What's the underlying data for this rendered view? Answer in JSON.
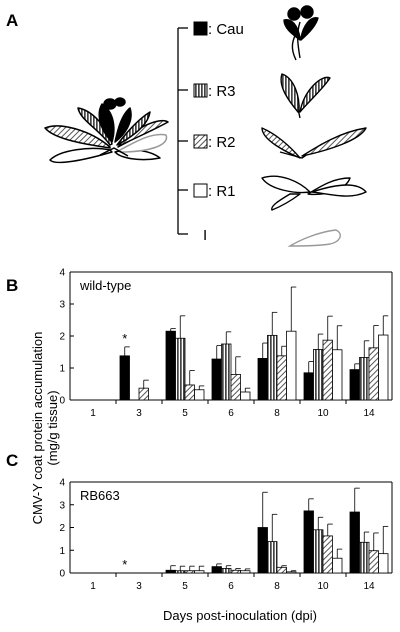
{
  "figure": {
    "panel_a_label": "A",
    "panel_b_label": "B",
    "panel_c_label": "C",
    "legend": [
      {
        "label": ": Cau",
        "fill": "black"
      },
      {
        "label": ": R3",
        "fill": "vstripe"
      },
      {
        "label": ": R2",
        "fill": "hatch"
      },
      {
        "label": ": R1",
        "fill": "white"
      },
      {
        "label": "I",
        "fill": "none"
      }
    ],
    "ylabel_line1": "CMV-Y coat protein accumulation",
    "ylabel_line2": "(mg/g tissue)",
    "xlabel": "Days post-inoculation (dpi)"
  },
  "chart_data": [
    {
      "type": "bar",
      "panel": "B",
      "title": "wild-type",
      "categories": [
        "1",
        "3",
        "5",
        "6",
        "8",
        "10",
        "14"
      ],
      "ylim": [
        0,
        4
      ],
      "yticks": [
        0,
        1,
        2,
        3,
        4
      ],
      "series": [
        {
          "key": "Cau",
          "fill": "black",
          "values": [
            0,
            1.38,
            2.15,
            1.28,
            1.3,
            0.85,
            0.95
          ],
          "errors": [
            0,
            0.28,
            0.08,
            0.42,
            0.48,
            0.35,
            0.18
          ]
        },
        {
          "key": "R3",
          "fill": "vstripe",
          "values": [
            0,
            0,
            1.93,
            1.75,
            2.02,
            1.58,
            1.33
          ],
          "errors": [
            0,
            0,
            0.7,
            0.38,
            0.72,
            0.48,
            0.52
          ]
        },
        {
          "key": "R2",
          "fill": "hatch",
          "values": [
            0,
            0.37,
            0.47,
            0.8,
            1.38,
            1.87,
            1.63
          ],
          "errors": [
            0,
            0.25,
            0.45,
            0.55,
            0.3,
            0.75,
            0.7
          ]
        },
        {
          "key": "R1",
          "fill": "white",
          "values": [
            0,
            0,
            0.32,
            0.25,
            2.15,
            1.57,
            2.03
          ],
          "errors": [
            0,
            0,
            0.12,
            0.12,
            1.38,
            0.75,
            0.6
          ]
        }
      ],
      "annotations": [
        {
          "text": "*",
          "category": "3"
        }
      ]
    },
    {
      "type": "bar",
      "panel": "C",
      "title": "RB663",
      "categories": [
        "1",
        "3",
        "5",
        "6",
        "8",
        "10",
        "14"
      ],
      "ylim": [
        0,
        4
      ],
      "yticks": [
        0,
        1,
        2,
        3,
        4
      ],
      "series": [
        {
          "key": "Cau",
          "fill": "black",
          "values": [
            0,
            0,
            0.12,
            0.28,
            2.0,
            2.73,
            2.68
          ],
          "errors": [
            0,
            0,
            0.2,
            0.12,
            1.55,
            0.53,
            1.05
          ]
        },
        {
          "key": "R3",
          "fill": "vstripe",
          "values": [
            0,
            0,
            0.1,
            0.2,
            1.38,
            1.9,
            1.35
          ],
          "errors": [
            0,
            0,
            0.2,
            0.12,
            1.2,
            0.55,
            0.45
          ]
        },
        {
          "key": "R2",
          "fill": "hatch",
          "values": [
            0,
            0,
            0.1,
            0.12,
            0.25,
            1.63,
            0.98
          ],
          "errors": [
            0,
            0,
            0.2,
            0.08,
            0.07,
            0.52,
            0.78
          ]
        },
        {
          "key": "R1",
          "fill": "white",
          "values": [
            0,
            0,
            0.1,
            0.1,
            0.05,
            0.65,
            0.85
          ],
          "errors": [
            0,
            0,
            0.2,
            0.08,
            0.05,
            0.4,
            1.2
          ]
        }
      ],
      "annotations": [
        {
          "text": "*",
          "category": "3"
        }
      ]
    }
  ]
}
